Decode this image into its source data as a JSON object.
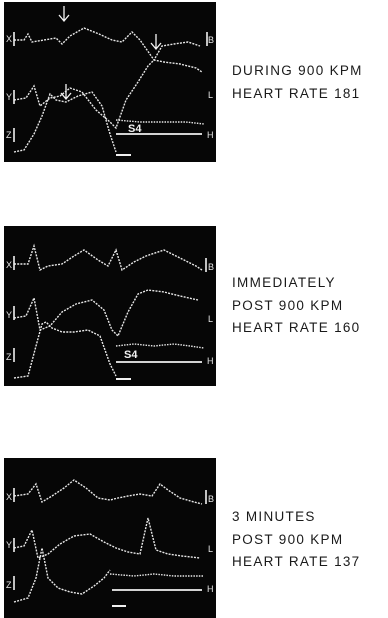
{
  "panels": [
    {
      "caption": [
        "DURING 900 KPM",
        "HEART RATE 181"
      ],
      "lead_labels": [
        "X",
        "Y",
        "Z"
      ],
      "right_labels": [
        "B",
        "L",
        "H"
      ],
      "sound_label": "S4",
      "arrows": 3
    },
    {
      "caption": [
        "IMMEDIATELY",
        "POST 900 KPM",
        "HEART RATE 160"
      ],
      "lead_labels": [
        "X",
        "Y",
        "Z"
      ],
      "right_labels": [
        "B",
        "L",
        "H"
      ],
      "sound_label": "S4",
      "arrows": 0
    },
    {
      "caption": [
        "3 MINUTES",
        "POST 900 KPM",
        "HEART RATE 137"
      ],
      "lead_labels": [
        "X",
        "Y",
        "Z"
      ],
      "right_labels": [
        "B",
        "L",
        "H"
      ],
      "sound_label": "",
      "arrows": 0
    }
  ],
  "colors": {
    "panel_bg": "#060606",
    "trace": "#e8e8e8",
    "caption": "#1a1a1a"
  }
}
